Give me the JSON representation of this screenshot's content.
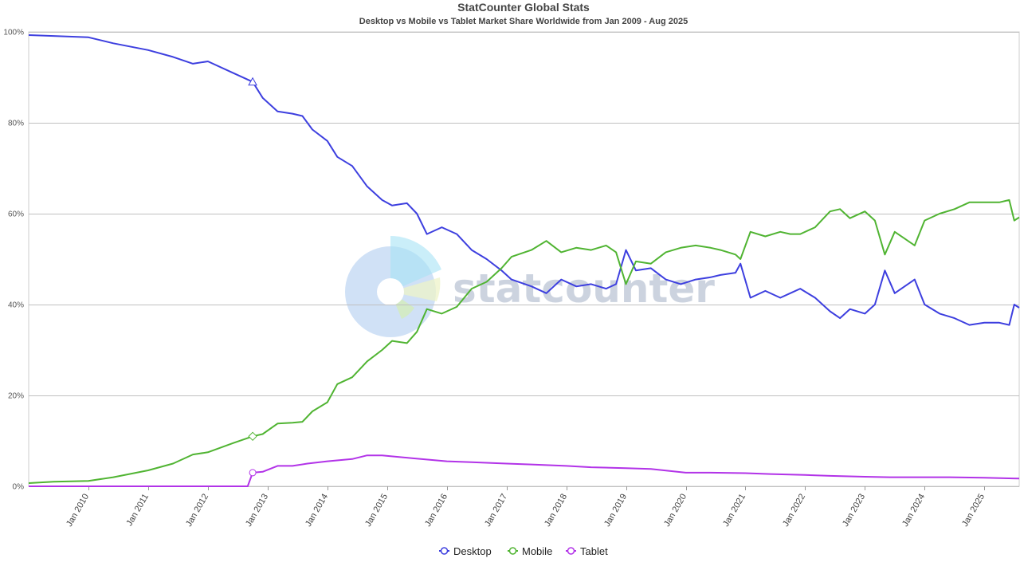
{
  "chart_data": {
    "type": "line",
    "title": "StatCounter Global Stats",
    "subtitle": "Desktop vs Mobile vs Tablet Market Share Worldwide from Jan 2009 - Aug 2025",
    "watermark": "statcounter",
    "x_range": [
      "2009-01",
      "2025-08"
    ],
    "x_ticks": [
      "Jan 2010",
      "Jan 2011",
      "Jan 2012",
      "Jan 2013",
      "Jan 2014",
      "Jan 2015",
      "Jan 2016",
      "Jan 2017",
      "Jan 2018",
      "Jan 2019",
      "Jan 2020",
      "Jan 2021",
      "Jan 2022",
      "Jan 2023",
      "Jan 2024",
      "Jan 2025"
    ],
    "y_ticks": [
      "0%",
      "20%",
      "40%",
      "60%",
      "80%",
      "100%"
    ],
    "ylim": [
      0,
      100
    ],
    "grid": true,
    "legend_position": "bottom-center",
    "series": [
      {
        "name": "Desktop",
        "color": "#3d3fdf",
        "points": [
          [
            "2009-01",
            99.3
          ],
          [
            "2009-06",
            99.1
          ],
          [
            "2010-01",
            98.8
          ],
          [
            "2010-06",
            97.5
          ],
          [
            "2011-01",
            96.0
          ],
          [
            "2011-06",
            94.5
          ],
          [
            "2011-10",
            93.0
          ],
          [
            "2012-01",
            93.5
          ],
          [
            "2012-06",
            91.0
          ],
          [
            "2012-10",
            89.0
          ],
          [
            "2012-12",
            85.5
          ],
          [
            "2013-03",
            82.5
          ],
          [
            "2013-06",
            82.0
          ],
          [
            "2013-08",
            81.5
          ],
          [
            "2013-10",
            78.5
          ],
          [
            "2014-01",
            76.0
          ],
          [
            "2014-03",
            72.5
          ],
          [
            "2014-06",
            70.5
          ],
          [
            "2014-09",
            66.0
          ],
          [
            "2014-12",
            63.0
          ],
          [
            "2015-02",
            61.8
          ],
          [
            "2015-05",
            62.3
          ],
          [
            "2015-07",
            60.0
          ],
          [
            "2015-09",
            55.5
          ],
          [
            "2015-12",
            57.0
          ],
          [
            "2016-03",
            55.5
          ],
          [
            "2016-06",
            52.0
          ],
          [
            "2016-09",
            50.0
          ],
          [
            "2016-12",
            47.5
          ],
          [
            "2017-02",
            45.5
          ],
          [
            "2017-06",
            44.0
          ],
          [
            "2017-09",
            42.5
          ],
          [
            "2017-12",
            45.5
          ],
          [
            "2018-03",
            44.0
          ],
          [
            "2018-06",
            44.5
          ],
          [
            "2018-09",
            43.5
          ],
          [
            "2018-11",
            44.5
          ],
          [
            "2019-01",
            52.0
          ],
          [
            "2019-03",
            47.5
          ],
          [
            "2019-06",
            48.0
          ],
          [
            "2019-09",
            45.5
          ],
          [
            "2019-12",
            44.5
          ],
          [
            "2020-03",
            45.5
          ],
          [
            "2020-06",
            46.0
          ],
          [
            "2020-08",
            46.5
          ],
          [
            "2020-11",
            47.0
          ],
          [
            "2020-12",
            49.0
          ],
          [
            "2021-02",
            41.5
          ],
          [
            "2021-05",
            43.0
          ],
          [
            "2021-08",
            41.5
          ],
          [
            "2021-10",
            42.5
          ],
          [
            "2021-12",
            43.5
          ],
          [
            "2022-03",
            41.5
          ],
          [
            "2022-06",
            38.5
          ],
          [
            "2022-08",
            37.0
          ],
          [
            "2022-10",
            39.0
          ],
          [
            "2023-01",
            38.0
          ],
          [
            "2023-03",
            40.0
          ],
          [
            "2023-05",
            47.5
          ],
          [
            "2023-07",
            42.5
          ],
          [
            "2023-09",
            44.0
          ],
          [
            "2023-11",
            45.5
          ],
          [
            "2024-01",
            40.0
          ],
          [
            "2024-04",
            38.0
          ],
          [
            "2024-07",
            37.0
          ],
          [
            "2024-10",
            35.5
          ],
          [
            "2025-01",
            36.0
          ],
          [
            "2025-04",
            36.0
          ],
          [
            "2025-06",
            35.5
          ],
          [
            "2025-07",
            40.0
          ],
          [
            "2025-08",
            39.3
          ]
        ]
      },
      {
        "name": "Mobile",
        "color": "#50b432",
        "points": [
          [
            "2009-01",
            0.7
          ],
          [
            "2009-06",
            1.0
          ],
          [
            "2010-01",
            1.2
          ],
          [
            "2010-06",
            2.0
          ],
          [
            "2011-01",
            3.5
          ],
          [
            "2011-06",
            5.0
          ],
          [
            "2011-10",
            7.0
          ],
          [
            "2012-01",
            7.5
          ],
          [
            "2012-06",
            9.5
          ],
          [
            "2012-10",
            11.0
          ],
          [
            "2012-12",
            11.5
          ],
          [
            "2013-03",
            13.8
          ],
          [
            "2013-06",
            14.0
          ],
          [
            "2013-08",
            14.2
          ],
          [
            "2013-10",
            16.5
          ],
          [
            "2014-01",
            18.5
          ],
          [
            "2014-03",
            22.5
          ],
          [
            "2014-06",
            24.0
          ],
          [
            "2014-09",
            27.5
          ],
          [
            "2014-12",
            30.0
          ],
          [
            "2015-02",
            32.0
          ],
          [
            "2015-05",
            31.5
          ],
          [
            "2015-07",
            34.0
          ],
          [
            "2015-09",
            39.0
          ],
          [
            "2015-12",
            38.0
          ],
          [
            "2016-03",
            39.5
          ],
          [
            "2016-06",
            43.5
          ],
          [
            "2016-09",
            45.0
          ],
          [
            "2016-12",
            48.0
          ],
          [
            "2017-02",
            50.5
          ],
          [
            "2017-06",
            52.0
          ],
          [
            "2017-09",
            54.0
          ],
          [
            "2017-12",
            51.5
          ],
          [
            "2018-03",
            52.5
          ],
          [
            "2018-06",
            52.0
          ],
          [
            "2018-09",
            53.0
          ],
          [
            "2018-11",
            51.5
          ],
          [
            "2019-01",
            44.5
          ],
          [
            "2019-03",
            49.5
          ],
          [
            "2019-06",
            49.0
          ],
          [
            "2019-09",
            51.5
          ],
          [
            "2019-12",
            52.5
          ],
          [
            "2020-03",
            53.0
          ],
          [
            "2020-06",
            52.5
          ],
          [
            "2020-08",
            52.0
          ],
          [
            "2020-11",
            51.0
          ],
          [
            "2020-12",
            50.0
          ],
          [
            "2021-02",
            56.0
          ],
          [
            "2021-05",
            55.0
          ],
          [
            "2021-08",
            56.0
          ],
          [
            "2021-10",
            55.5
          ],
          [
            "2021-12",
            55.5
          ],
          [
            "2022-03",
            57.0
          ],
          [
            "2022-06",
            60.5
          ],
          [
            "2022-08",
            61.0
          ],
          [
            "2022-10",
            59.0
          ],
          [
            "2023-01",
            60.5
          ],
          [
            "2023-03",
            58.5
          ],
          [
            "2023-05",
            51.0
          ],
          [
            "2023-07",
            56.0
          ],
          [
            "2023-09",
            54.5
          ],
          [
            "2023-11",
            53.0
          ],
          [
            "2024-01",
            58.5
          ],
          [
            "2024-04",
            60.0
          ],
          [
            "2024-07",
            61.0
          ],
          [
            "2024-10",
            62.5
          ],
          [
            "2025-01",
            62.5
          ],
          [
            "2025-04",
            62.5
          ],
          [
            "2025-06",
            63.0
          ],
          [
            "2025-07",
            58.5
          ],
          [
            "2025-08",
            59.2
          ]
        ]
      },
      {
        "name": "Tablet",
        "color": "#b233e8",
        "points": [
          [
            "2009-01",
            0.0
          ],
          [
            "2010-01",
            0.0
          ],
          [
            "2011-01",
            0.0
          ],
          [
            "2012-01",
            0.0
          ],
          [
            "2012-09",
            0.0
          ],
          [
            "2012-10",
            3.0
          ],
          [
            "2012-12",
            3.2
          ],
          [
            "2013-03",
            4.5
          ],
          [
            "2013-06",
            4.5
          ],
          [
            "2013-09",
            5.0
          ],
          [
            "2014-01",
            5.5
          ],
          [
            "2014-06",
            6.0
          ],
          [
            "2014-09",
            6.8
          ],
          [
            "2014-12",
            6.8
          ],
          [
            "2015-06",
            6.2
          ],
          [
            "2016-01",
            5.5
          ],
          [
            "2016-06",
            5.3
          ],
          [
            "2017-01",
            5.0
          ],
          [
            "2017-06",
            4.8
          ],
          [
            "2018-01",
            4.5
          ],
          [
            "2018-06",
            4.2
          ],
          [
            "2019-01",
            4.0
          ],
          [
            "2019-06",
            3.8
          ],
          [
            "2020-01",
            3.0
          ],
          [
            "2020-06",
            3.0
          ],
          [
            "2021-01",
            2.9
          ],
          [
            "2021-06",
            2.7
          ],
          [
            "2022-01",
            2.5
          ],
          [
            "2022-06",
            2.3
          ],
          [
            "2023-01",
            2.1
          ],
          [
            "2023-06",
            2.0
          ],
          [
            "2024-01",
            2.0
          ],
          [
            "2024-06",
            2.0
          ],
          [
            "2025-01",
            1.9
          ],
          [
            "2025-08",
            1.7
          ]
        ]
      }
    ]
  }
}
